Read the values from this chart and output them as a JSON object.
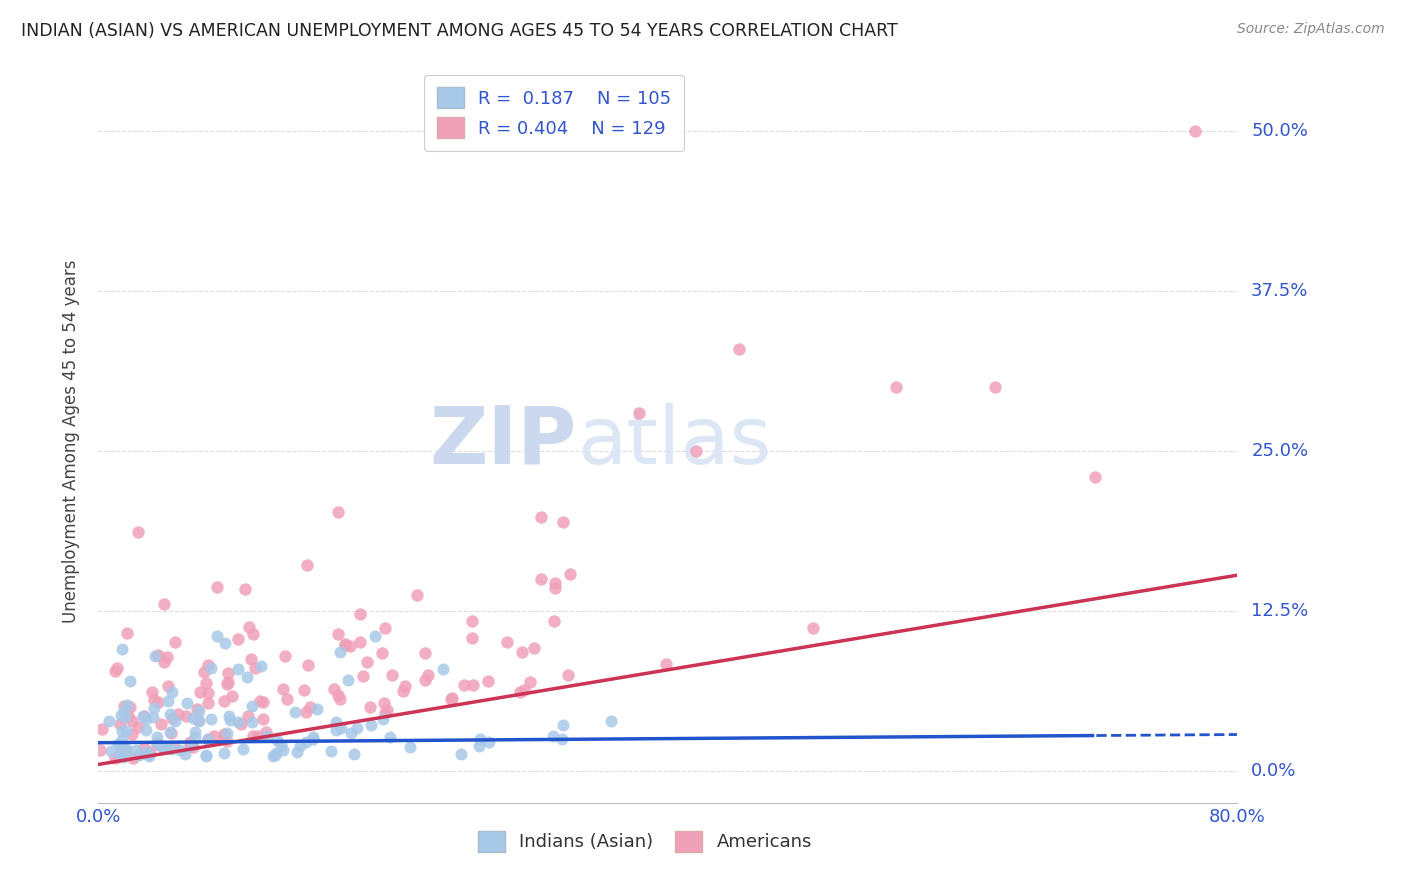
{
  "title": "INDIAN (ASIAN) VS AMERICAN UNEMPLOYMENT AMONG AGES 45 TO 54 YEARS CORRELATION CHART",
  "source": "Source: ZipAtlas.com",
  "ylabel": "Unemployment Among Ages 45 to 54 years",
  "xlim": [
    0.0,
    0.8
  ],
  "ylim": [
    -0.025,
    0.54
  ],
  "yticks": [
    0.0,
    0.125,
    0.25,
    0.375,
    0.5
  ],
  "ytick_labels": [
    "0.0%",
    "12.5%",
    "25.0%",
    "37.5%",
    "50.0%"
  ],
  "xtick_labels": [
    "0.0%",
    "80.0%"
  ],
  "xtick_vals": [
    0.0,
    0.8
  ],
  "legend_labels": [
    "Indians (Asian)",
    "Americans"
  ],
  "indian_R": 0.187,
  "indian_N": 105,
  "american_R": 0.404,
  "american_N": 129,
  "indian_color": "#a8c8e8",
  "american_color": "#f0a0b8",
  "indian_line_color": "#2255cc",
  "american_line_color": "#cc3355",
  "title_color": "#222222",
  "axis_label_color": "#444444",
  "tick_label_color": "#3355cc",
  "watermark_zip": "ZIP",
  "watermark_atlas": "atlas",
  "background_color": "#ffffff",
  "grid_color": "#dddddd",
  "indian_line_slope": 0.008,
  "indian_line_intercept": 0.022,
  "american_line_slope": 0.185,
  "american_line_intercept": 0.005,
  "indian_line_solid_end": 0.7,
  "american_line_solid_end": 0.8
}
